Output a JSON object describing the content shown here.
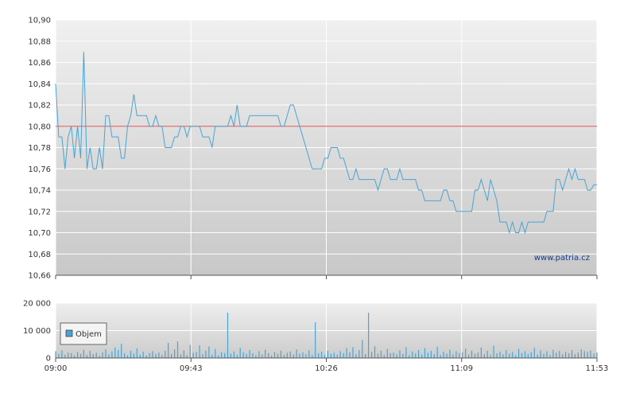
{
  "chart_data": [
    {
      "type": "line",
      "x_ticks": [
        "09:00",
        "09:43",
        "10:26",
        "11:09",
        "11:53"
      ],
      "y_ticks": [
        "10,66",
        "10,68",
        "10,70",
        "10,72",
        "10,74",
        "10,76",
        "10,78",
        "10,80",
        "10,82",
        "10,84",
        "10,86",
        "10,88",
        "10,90"
      ],
      "ylim": [
        10.66,
        10.9
      ],
      "xlim_minutes": [
        0,
        173
      ],
      "grid": true,
      "reference_line": {
        "value": 10.8,
        "color": "#e05050"
      },
      "series_color": "#4ba3d3",
      "watermark": "www.patria.cz",
      "points": [
        [
          0,
          10.84
        ],
        [
          1,
          10.79
        ],
        [
          2,
          10.79
        ],
        [
          3,
          10.76
        ],
        [
          4,
          10.79
        ],
        [
          5,
          10.8
        ],
        [
          6,
          10.77
        ],
        [
          7,
          10.8
        ],
        [
          8,
          10.77
        ],
        [
          9,
          10.87
        ],
        [
          10,
          10.76
        ],
        [
          11,
          10.78
        ],
        [
          12,
          10.76
        ],
        [
          13,
          10.76
        ],
        [
          14,
          10.78
        ],
        [
          15,
          10.76
        ],
        [
          16,
          10.81
        ],
        [
          17,
          10.81
        ],
        [
          18,
          10.79
        ],
        [
          19,
          10.79
        ],
        [
          20,
          10.79
        ],
        [
          21,
          10.77
        ],
        [
          22,
          10.77
        ],
        [
          23,
          10.8
        ],
        [
          24,
          10.81
        ],
        [
          25,
          10.83
        ],
        [
          26,
          10.81
        ],
        [
          27,
          10.81
        ],
        [
          28,
          10.81
        ],
        [
          29,
          10.81
        ],
        [
          30,
          10.8
        ],
        [
          31,
          10.8
        ],
        [
          32,
          10.81
        ],
        [
          33,
          10.8
        ],
        [
          34,
          10.8
        ],
        [
          35,
          10.78
        ],
        [
          36,
          10.78
        ],
        [
          37,
          10.78
        ],
        [
          38,
          10.79
        ],
        [
          39,
          10.79
        ],
        [
          40,
          10.8
        ],
        [
          41,
          10.8
        ],
        [
          42,
          10.79
        ],
        [
          43,
          10.8
        ],
        [
          44,
          10.8
        ],
        [
          45,
          10.8
        ],
        [
          46,
          10.8
        ],
        [
          47,
          10.79
        ],
        [
          48,
          10.79
        ],
        [
          49,
          10.79
        ],
        [
          50,
          10.78
        ],
        [
          51,
          10.8
        ],
        [
          52,
          10.8
        ],
        [
          53,
          10.8
        ],
        [
          54,
          10.8
        ],
        [
          55,
          10.8
        ],
        [
          56,
          10.81
        ],
        [
          57,
          10.8
        ],
        [
          58,
          10.82
        ],
        [
          59,
          10.8
        ],
        [
          60,
          10.8
        ],
        [
          61,
          10.8
        ],
        [
          62,
          10.81
        ],
        [
          63,
          10.81
        ],
        [
          64,
          10.81
        ],
        [
          65,
          10.81
        ],
        [
          66,
          10.81
        ],
        [
          67,
          10.81
        ],
        [
          68,
          10.81
        ],
        [
          69,
          10.81
        ],
        [
          70,
          10.81
        ],
        [
          71,
          10.81
        ],
        [
          72,
          10.8
        ],
        [
          73,
          10.8
        ],
        [
          74,
          10.81
        ],
        [
          75,
          10.82
        ],
        [
          76,
          10.82
        ],
        [
          77,
          10.81
        ],
        [
          78,
          10.8
        ],
        [
          79,
          10.79
        ],
        [
          80,
          10.78
        ],
        [
          81,
          10.77
        ],
        [
          82,
          10.76
        ],
        [
          83,
          10.76
        ],
        [
          84,
          10.76
        ],
        [
          85,
          10.76
        ],
        [
          86,
          10.77
        ],
        [
          87,
          10.77
        ],
        [
          88,
          10.78
        ],
        [
          89,
          10.78
        ],
        [
          90,
          10.78
        ],
        [
          91,
          10.77
        ],
        [
          92,
          10.77
        ],
        [
          93,
          10.76
        ],
        [
          94,
          10.75
        ],
        [
          95,
          10.75
        ],
        [
          96,
          10.76
        ],
        [
          97,
          10.75
        ],
        [
          98,
          10.75
        ],
        [
          99,
          10.75
        ],
        [
          100,
          10.75
        ],
        [
          101,
          10.75
        ],
        [
          102,
          10.75
        ],
        [
          103,
          10.74
        ],
        [
          104,
          10.75
        ],
        [
          105,
          10.76
        ],
        [
          106,
          10.76
        ],
        [
          107,
          10.75
        ],
        [
          108,
          10.75
        ],
        [
          109,
          10.75
        ],
        [
          110,
          10.76
        ],
        [
          111,
          10.75
        ],
        [
          112,
          10.75
        ],
        [
          113,
          10.75
        ],
        [
          114,
          10.75
        ],
        [
          115,
          10.75
        ],
        [
          116,
          10.74
        ],
        [
          117,
          10.74
        ],
        [
          118,
          10.73
        ],
        [
          119,
          10.73
        ],
        [
          120,
          10.73
        ],
        [
          121,
          10.73
        ],
        [
          122,
          10.73
        ],
        [
          123,
          10.73
        ],
        [
          124,
          10.74
        ],
        [
          125,
          10.74
        ],
        [
          126,
          10.73
        ],
        [
          127,
          10.73
        ],
        [
          128,
          10.72
        ],
        [
          129,
          10.72
        ],
        [
          130,
          10.72
        ],
        [
          131,
          10.72
        ],
        [
          132,
          10.72
        ],
        [
          133,
          10.72
        ],
        [
          134,
          10.74
        ],
        [
          135,
          10.74
        ],
        [
          136,
          10.75
        ],
        [
          137,
          10.74
        ],
        [
          138,
          10.73
        ],
        [
          139,
          10.75
        ],
        [
          140,
          10.74
        ],
        [
          141,
          10.73
        ],
        [
          142,
          10.71
        ],
        [
          143,
          10.71
        ],
        [
          144,
          10.71
        ],
        [
          145,
          10.7
        ],
        [
          146,
          10.71
        ],
        [
          147,
          10.7
        ],
        [
          148,
          10.7
        ],
        [
          149,
          10.71
        ],
        [
          150,
          10.7
        ],
        [
          151,
          10.71
        ],
        [
          152,
          10.71
        ],
        [
          153,
          10.71
        ],
        [
          154,
          10.71
        ],
        [
          155,
          10.71
        ],
        [
          156,
          10.71
        ],
        [
          157,
          10.72
        ],
        [
          158,
          10.72
        ],
        [
          159,
          10.72
        ],
        [
          160,
          10.75
        ],
        [
          161,
          10.75
        ],
        [
          162,
          10.74
        ],
        [
          163,
          10.75
        ],
        [
          164,
          10.76
        ],
        [
          165,
          10.75
        ],
        [
          166,
          10.76
        ],
        [
          167,
          10.75
        ],
        [
          168,
          10.75
        ],
        [
          169,
          10.75
        ],
        [
          170,
          10.74
        ],
        [
          171,
          10.74
        ],
        [
          172,
          10.745
        ],
        [
          173,
          10.745
        ]
      ]
    },
    {
      "type": "bar",
      "y_ticks": [
        "0",
        "10 000",
        "20 000"
      ],
      "ylim": [
        0,
        20000
      ],
      "legend": "Objem",
      "legend_position": "top-left",
      "bar_color": "#4ba3d3",
      "volumes": [
        [
          0,
          2500
        ],
        [
          1,
          1500
        ],
        [
          2,
          2800
        ],
        [
          3,
          1200
        ],
        [
          4,
          2000
        ],
        [
          5,
          1800
        ],
        [
          6,
          900
        ],
        [
          7,
          2200
        ],
        [
          8,
          1500
        ],
        [
          9,
          3000
        ],
        [
          10,
          1100
        ],
        [
          11,
          2600
        ],
        [
          12,
          1400
        ],
        [
          13,
          1900
        ],
        [
          14,
          800
        ],
        [
          15,
          2100
        ],
        [
          16,
          3200
        ],
        [
          17,
          1300
        ],
        [
          18,
          2400
        ],
        [
          19,
          3800
        ],
        [
          20,
          2900
        ],
        [
          21,
          5200
        ],
        [
          22,
          1700
        ],
        [
          23,
          1000
        ],
        [
          24,
          2700
        ],
        [
          25,
          1600
        ],
        [
          26,
          3500
        ],
        [
          27,
          1200
        ],
        [
          28,
          2300
        ],
        [
          29,
          900
        ],
        [
          30,
          1800
        ],
        [
          31,
          2500
        ],
        [
          32,
          1400
        ],
        [
          33,
          2000
        ],
        [
          34,
          1100
        ],
        [
          35,
          2600
        ],
        [
          36,
          5500
        ],
        [
          37,
          1500
        ],
        [
          38,
          3100
        ],
        [
          39,
          6000
        ],
        [
          40,
          1300
        ],
        [
          41,
          2800
        ],
        [
          42,
          1000
        ],
        [
          43,
          4800
        ],
        [
          44,
          1900
        ],
        [
          45,
          2200
        ],
        [
          46,
          4600
        ],
        [
          47,
          1400
        ],
        [
          48,
          2700
        ],
        [
          49,
          4200
        ],
        [
          50,
          1200
        ],
        [
          51,
          3300
        ],
        [
          52,
          900
        ],
        [
          53,
          2100
        ],
        [
          54,
          1800
        ],
        [
          55,
          16500
        ],
        [
          56,
          1600
        ],
        [
          57,
          2400
        ],
        [
          58,
          1100
        ],
        [
          59,
          3700
        ],
        [
          60,
          2000
        ],
        [
          61,
          1400
        ],
        [
          62,
          2900
        ],
        [
          63,
          1700
        ],
        [
          64,
          1000
        ],
        [
          65,
          2500
        ],
        [
          66,
          1300
        ],
        [
          67,
          3000
        ],
        [
          68,
          1800
        ],
        [
          69,
          900
        ],
        [
          70,
          2200
        ],
        [
          71,
          1500
        ],
        [
          72,
          2700
        ],
        [
          73,
          1100
        ],
        [
          74,
          1900
        ],
        [
          75,
          2400
        ],
        [
          76,
          1200
        ],
        [
          77,
          3100
        ],
        [
          78,
          1600
        ],
        [
          79,
          2000
        ],
        [
          80,
          1400
        ],
        [
          81,
          2800
        ],
        [
          82,
          1000
        ],
        [
          83,
          13000
        ],
        [
          84,
          1700
        ],
        [
          85,
          2300
        ],
        [
          86,
          1100
        ],
        [
          87,
          2600
        ],
        [
          88,
          1500
        ],
        [
          89,
          1900
        ],
        [
          90,
          1200
        ],
        [
          91,
          2500
        ],
        [
          92,
          1800
        ],
        [
          93,
          3600
        ],
        [
          94,
          2100
        ],
        [
          95,
          4000
        ],
        [
          96,
          1300
        ],
        [
          97,
          2900
        ],
        [
          98,
          6500
        ],
        [
          99,
          1400
        ],
        [
          100,
          16500
        ],
        [
          101,
          2200
        ],
        [
          102,
          4300
        ],
        [
          103,
          1600
        ],
        [
          104,
          2700
        ],
        [
          105,
          1100
        ],
        [
          106,
          3300
        ],
        [
          107,
          1800
        ],
        [
          108,
          2000
        ],
        [
          109,
          1300
        ],
        [
          110,
          2800
        ],
        [
          111,
          1500
        ],
        [
          112,
          3900
        ],
        [
          113,
          1000
        ],
        [
          114,
          2400
        ],
        [
          115,
          1700
        ],
        [
          116,
          2900
        ],
        [
          117,
          1200
        ],
        [
          118,
          3600
        ],
        [
          119,
          1900
        ],
        [
          120,
          2600
        ],
        [
          121,
          1400
        ],
        [
          122,
          4100
        ],
        [
          123,
          1100
        ],
        [
          124,
          2300
        ],
        [
          125,
          1600
        ],
        [
          126,
          3000
        ],
        [
          127,
          1300
        ],
        [
          128,
          2500
        ],
        [
          129,
          1800
        ],
        [
          130,
          2100
        ],
        [
          131,
          3400
        ],
        [
          132,
          1200
        ],
        [
          133,
          2700
        ],
        [
          134,
          1500
        ],
        [
          135,
          2000
        ],
        [
          136,
          3800
        ],
        [
          137,
          1400
        ],
        [
          138,
          2600
        ],
        [
          139,
          1100
        ],
        [
          140,
          4500
        ],
        [
          141,
          1700
        ],
        [
          142,
          2300
        ],
        [
          143,
          1300
        ],
        [
          144,
          2900
        ],
        [
          145,
          1600
        ],
        [
          146,
          2200
        ],
        [
          147,
          1000
        ],
        [
          148,
          3300
        ],
        [
          149,
          1800
        ],
        [
          150,
          2500
        ],
        [
          151,
          1400
        ],
        [
          152,
          2100
        ],
        [
          153,
          3700
        ],
        [
          154,
          1200
        ],
        [
          155,
          2800
        ],
        [
          156,
          1500
        ],
        [
          157,
          2400
        ],
        [
          158,
          1100
        ],
        [
          159,
          3000
        ],
        [
          160,
          1900
        ],
        [
          161,
          2600
        ],
        [
          162,
          1300
        ],
        [
          163,
          2200
        ],
        [
          164,
          1700
        ],
        [
          165,
          2900
        ],
        [
          166,
          1400
        ],
        [
          167,
          2000
        ],
        [
          168,
          3100
        ],
        [
          169,
          2500
        ],
        [
          170,
          2200
        ],
        [
          171,
          2700
        ],
        [
          172,
          1600
        ],
        [
          173,
          2000
        ]
      ]
    }
  ]
}
